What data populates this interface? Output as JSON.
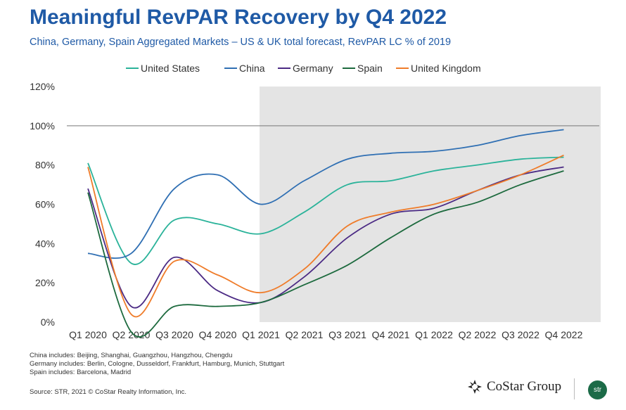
{
  "header": {
    "title": "Meaningful RevPAR Recovery by Q4 2022",
    "subtitle": "China, Germany, Spain Aggregated Markets – US & UK total forecast, RevPAR LC % of 2019"
  },
  "chart_data": {
    "type": "line",
    "title": "Meaningful RevPAR Recovery by Q4 2022",
    "subtitle": "China, Germany, Spain Aggregated Markets – US & UK total forecast, RevPAR LC % of 2019",
    "categories": [
      "Q1 2020",
      "Q2 2020",
      "Q3 2020",
      "Q4 2020",
      "Q1 2021",
      "Q2 2021",
      "Q3 2021",
      "Q4 2021",
      "Q1 2022",
      "Q2 2022",
      "Q3 2022",
      "Q4 2022"
    ],
    "y_tick_labels": [
      "0%",
      "20%",
      "40%",
      "60%",
      "80%",
      "100%",
      "120%"
    ],
    "ylim": [
      0,
      120
    ],
    "reference_line": 100,
    "forecast_shading_from": "Q1 2021",
    "legend_position": "top",
    "grid": false,
    "series": [
      {
        "name": "United States",
        "color": "#2bb39a",
        "values": [
          81,
          30,
          52,
          50,
          45,
          56,
          70,
          72,
          77,
          80,
          83,
          84
        ]
      },
      {
        "name": "China",
        "color": "#2f6fb3",
        "values": [
          35,
          35,
          68,
          75,
          60,
          72,
          83,
          86,
          87,
          90,
          95,
          98
        ]
      },
      {
        "name": "Germany",
        "color": "#4b2a84",
        "values": [
          68,
          8,
          33,
          16,
          10,
          23,
          43,
          55,
          58,
          67,
          75,
          79
        ]
      },
      {
        "name": "Spain",
        "color": "#1d6a3e",
        "values": [
          66,
          -5,
          8,
          8,
          10,
          19,
          29,
          43,
          55,
          61,
          70,
          77
        ]
      },
      {
        "name": "United Kingdom",
        "color": "#ef7c2a",
        "values": [
          79,
          4,
          31,
          24,
          15,
          27,
          49,
          56,
          60,
          67,
          75,
          85
        ]
      }
    ]
  },
  "notes": [
    "China includes: Beijing, Shanghai, Guangzhou, Hangzhou, Chengdu",
    "Germany includes: Berlin, Cologne, Dusseldorf, Frankfurt, Hamburg, Munich, Stuttgart",
    "Spain includes: Barcelona, Madrid"
  ],
  "source": "Source: STR, 2021 © CoStar Realty Information, Inc.",
  "logos": {
    "costar": "CoStar Group",
    "str": "str"
  },
  "icons": {
    "costar": "costar-star-logo-icon",
    "str": "str-circle-logo-icon"
  }
}
